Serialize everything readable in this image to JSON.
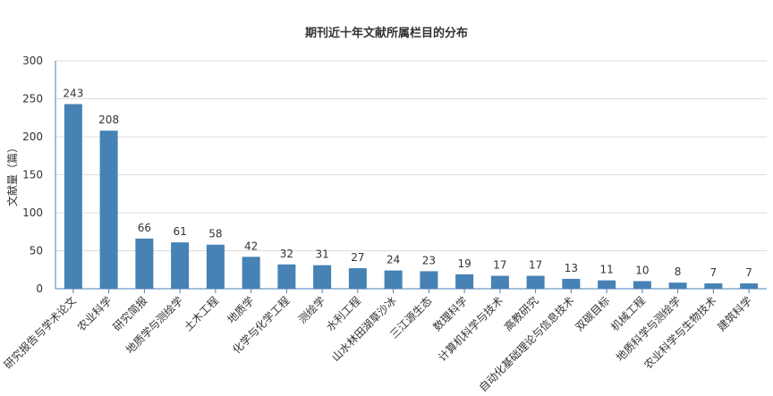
{
  "chart_data": {
    "type": "bar",
    "title": "期刊近十年文献所属栏目的分布",
    "xlabel": "",
    "ylabel": "文献量（篇）",
    "ylim": [
      0,
      300
    ],
    "yticks": [
      0,
      50,
      100,
      150,
      200,
      250,
      300
    ],
    "grid": true,
    "legend": "none",
    "bar_color": "#4682b4",
    "categories": [
      "研究报告与学术论文",
      "农业科学",
      "研究简报",
      "地质学与测绘学",
      "土木工程",
      "地质学",
      "化学与化学工程",
      "测绘学",
      "水利工程",
      "山水林田湖草沙冰",
      "三江源生态",
      "数理科学",
      "计算机科学与技术",
      "高教研究",
      "自动化基础理论与信息技术",
      "双碳目标",
      "机械工程",
      "地质科学与测绘学",
      "农业科学与生物技术",
      "建筑科学"
    ],
    "values": [
      243,
      208,
      66,
      61,
      58,
      42,
      32,
      31,
      27,
      24,
      23,
      19,
      17,
      17,
      13,
      11,
      10,
      8,
      7,
      7
    ]
  }
}
